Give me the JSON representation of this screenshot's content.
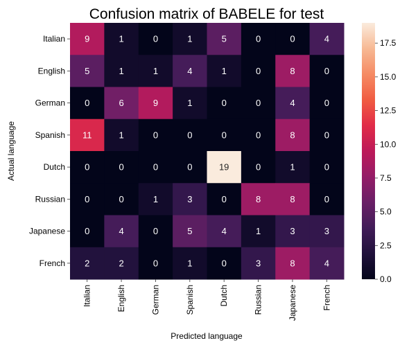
{
  "chart_data": {
    "type": "heatmap",
    "title": "Confusion matrix of BABELE for test",
    "xlabel": "Predicted language",
    "ylabel": "Actual language",
    "x_categories": [
      "Italian",
      "English",
      "German",
      "Spanish",
      "Dutch",
      "Russian",
      "Japanese",
      "French"
    ],
    "y_categories": [
      "Italian",
      "English",
      "German",
      "Spanish",
      "Dutch",
      "Russian",
      "Japanese",
      "French"
    ],
    "values": [
      [
        9,
        1,
        0,
        1,
        5,
        0,
        0,
        4
      ],
      [
        5,
        1,
        1,
        4,
        1,
        0,
        8,
        0
      ],
      [
        0,
        6,
        9,
        1,
        0,
        0,
        4,
        0
      ],
      [
        11,
        1,
        0,
        0,
        0,
        0,
        8,
        0
      ],
      [
        0,
        0,
        0,
        0,
        19,
        0,
        1,
        0
      ],
      [
        0,
        0,
        1,
        3,
        0,
        8,
        8,
        0
      ],
      [
        0,
        4,
        0,
        5,
        4,
        1,
        3,
        3
      ],
      [
        2,
        2,
        0,
        1,
        0,
        3,
        8,
        4
      ]
    ],
    "colorbar": {
      "min": 0,
      "max": 19,
      "ticks": [
        "0.0",
        "2.5",
        "5.0",
        "7.5",
        "10.0",
        "12.5",
        "15.0",
        "17.5"
      ],
      "colormap": "rocket"
    },
    "grid": false
  }
}
